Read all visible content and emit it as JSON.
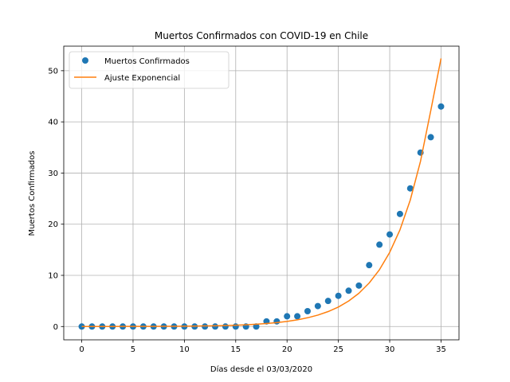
{
  "chart_data": {
    "type": "scatter",
    "title": "Muertos Confirmados con COVID-19 en Chile",
    "xlabel": "Días desde el 03/03/2020",
    "ylabel": "Muertos Confirmados",
    "xlim": [
      -1.75,
      36.75
    ],
    "ylim": [
      -2.6,
      54.8
    ],
    "xticks": [
      0,
      5,
      10,
      15,
      20,
      25,
      30,
      35
    ],
    "yticks": [
      0,
      10,
      20,
      30,
      40,
      50
    ],
    "grid": true,
    "legend_position": "top-left",
    "series": [
      {
        "name": "Muertos Confirmados",
        "kind": "points",
        "color": "#1f77b4",
        "x": [
          0,
          1,
          2,
          3,
          4,
          5,
          6,
          7,
          8,
          9,
          10,
          11,
          12,
          13,
          14,
          15,
          16,
          17,
          18,
          19,
          20,
          21,
          22,
          23,
          24,
          25,
          26,
          27,
          28,
          29,
          30,
          31,
          32,
          33,
          34,
          35
        ],
        "y": [
          0,
          0,
          0,
          0,
          0,
          0,
          0,
          0,
          0,
          0,
          0,
          0,
          0,
          0,
          0,
          0,
          0,
          0,
          1,
          1,
          2,
          2,
          3,
          4,
          5,
          6,
          7,
          8,
          12,
          16,
          18,
          22,
          27,
          34,
          37,
          43
        ]
      },
      {
        "name": "Ajuste Exponencial",
        "kind": "line",
        "color": "#ff7f0e",
        "x": [
          0,
          1,
          2,
          3,
          4,
          5,
          6,
          7,
          8,
          9,
          10,
          11,
          12,
          13,
          14,
          15,
          16,
          17,
          18,
          19,
          20,
          21,
          22,
          23,
          24,
          25,
          26,
          27,
          28,
          29,
          30,
          31,
          32,
          33,
          34,
          35
        ],
        "y": [
          0.01,
          0.01,
          0.01,
          0.01,
          0.02,
          0.02,
          0.03,
          0.03,
          0.04,
          0.05,
          0.07,
          0.09,
          0.12,
          0.15,
          0.2,
          0.26,
          0.34,
          0.45,
          0.59,
          0.77,
          1.0,
          1.31,
          1.71,
          2.23,
          2.92,
          3.81,
          4.98,
          6.5,
          8.5,
          11.1,
          14.5,
          18.9,
          24.7,
          32.3,
          42.2,
          52.4
        ]
      }
    ]
  }
}
